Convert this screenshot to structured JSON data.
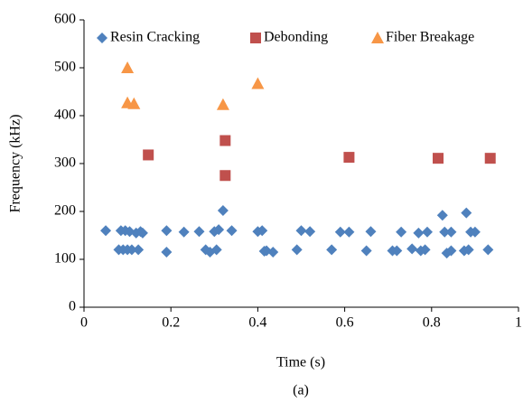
{
  "chart_data": {
    "type": "scatter",
    "caption": "(a)",
    "x_label": "Time (s)",
    "y_label": "Frequency (kHz)",
    "xlim": [
      0,
      1
    ],
    "xticks": [
      0,
      0.2,
      0.4,
      0.6,
      0.8,
      1
    ],
    "ylim": [
      0,
      600
    ],
    "yticks": [
      0,
      100,
      200,
      300,
      400,
      500,
      600
    ],
    "grid": false,
    "legend": "top",
    "series": [
      {
        "name": "Resin Cracking",
        "color": "#4f81bd",
        "marker": "diamond",
        "x": [
          0.05,
          0.08,
          0.085,
          0.09,
          0.095,
          0.1,
          0.105,
          0.11,
          0.12,
          0.125,
          0.13,
          0.135,
          0.19,
          0.19,
          0.23,
          0.265,
          0.28,
          0.29,
          0.3,
          0.305,
          0.31,
          0.32,
          0.34,
          0.4,
          0.41,
          0.415,
          0.42,
          0.435,
          0.49,
          0.5,
          0.52,
          0.57,
          0.59,
          0.61,
          0.65,
          0.66,
          0.71,
          0.72,
          0.73,
          0.755,
          0.77,
          0.775,
          0.785,
          0.79,
          0.825,
          0.83,
          0.835,
          0.845,
          0.845,
          0.875,
          0.88,
          0.885,
          0.89,
          0.9,
          0.93
        ],
        "y": [
          160,
          120,
          160,
          120,
          160,
          120,
          158,
          120,
          155,
          120,
          158,
          155,
          160,
          115,
          157,
          158,
          120,
          115,
          158,
          120,
          162,
          202,
          160,
          158,
          160,
          117,
          118,
          115,
          120,
          160,
          158,
          120,
          157,
          157,
          118,
          158,
          118,
          118,
          157,
          122,
          155,
          118,
          120,
          157,
          192,
          157,
          113,
          118,
          157,
          118,
          197,
          120,
          157,
          157,
          120
        ]
      },
      {
        "name": "Debonding",
        "color": "#c0504d",
        "marker": "square",
        "x": [
          0.148,
          0.325,
          0.325,
          0.61,
          0.815,
          0.935
        ],
        "y": [
          318,
          348,
          275,
          313,
          311,
          311
        ]
      },
      {
        "name": "Fiber Breakage",
        "color": "#f79646",
        "marker": "triangle",
        "x": [
          0.1,
          0.1,
          0.115,
          0.32,
          0.4
        ],
        "y": [
          500,
          427,
          425,
          423,
          467
        ]
      }
    ]
  }
}
